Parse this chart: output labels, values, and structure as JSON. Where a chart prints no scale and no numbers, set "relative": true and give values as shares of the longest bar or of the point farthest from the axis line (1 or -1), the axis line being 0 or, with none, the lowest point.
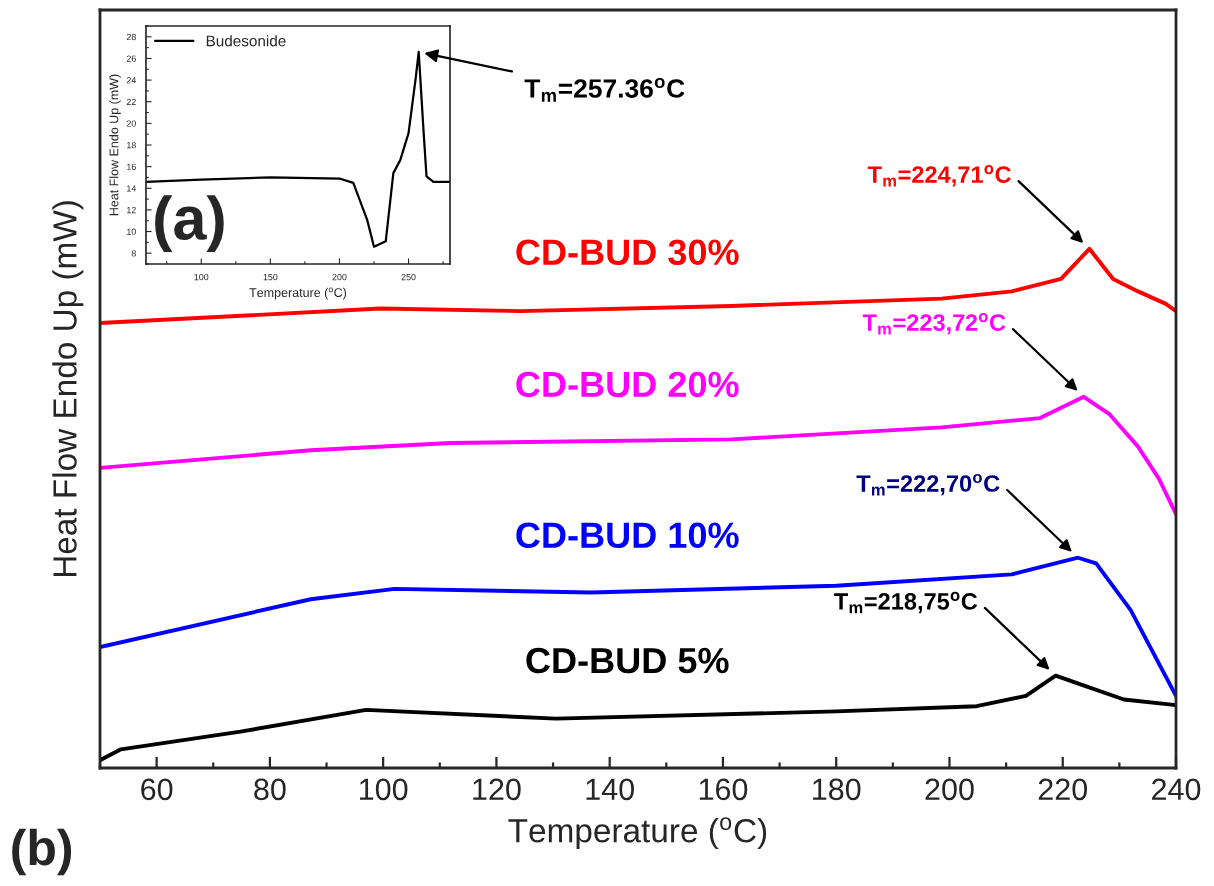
{
  "chart_data": [
    {
      "type": "line",
      "xlabel": "Temperature ($^{o}$C)",
      "ylabel": "Heat Flow Endo Up (mW)",
      "xlim": [
        60,
        280
      ],
      "ylim": [
        7,
        29
      ],
      "xticks": [
        100,
        150,
        200,
        250
      ],
      "yticks": [
        8,
        10,
        12,
        14,
        16,
        18,
        20,
        22,
        24,
        26,
        28
      ],
      "legend": "top left",
      "series": [
        {
          "name": "Budesonide",
          "color": "#000000",
          "x": [
            60,
            100,
            150,
            200,
            210,
            220,
            225,
            233.5,
            239,
            244,
            250,
            255,
            257.36,
            261,
            263,
            268,
            280
          ],
          "values": [
            14.6,
            14.8,
            15.0,
            14.9,
            14.5,
            11.1,
            8.6,
            9.1,
            15.4,
            16.6,
            19.1,
            24.0,
            26.6,
            19.0,
            15.1,
            14.6,
            14.6
          ]
        }
      ],
      "annotations": [
        "(a)",
        {
          "text": "T$_{m}$=257.36$^{o}$C",
          "x": 257.36,
          "y": 26.6
        }
      ]
    },
    {
      "type": "line",
      "relative": true,
      "xlabel": "Temperature ($^{o}$C)",
      "ylabel": "Heat Flow Endo Up (mW)",
      "xlim": [
        50,
        240
      ],
      "xticks": [
        60,
        80,
        100,
        120,
        140,
        160,
        180,
        200,
        220,
        240
      ],
      "tick_labels": "x",
      "series": [
        {
          "name": "CD-BUD 30%",
          "color": "#ff0000",
          "x": [
            50,
            99.5,
            124.3,
            161.5,
            198.6,
            211,
            219.7,
            224.71,
            228.9,
            233.3,
            238.2,
            240
          ],
          "values": [
            0.857,
            0.885,
            0.88,
            0.89,
            0.904,
            0.918,
            0.942,
            1.0,
            0.942,
            0.918,
            0.894,
            0.88
          ]
        },
        {
          "name": "CD-BUD 20%",
          "color": "#ff00ff",
          "x": [
            50,
            87.2,
            111.9,
            161.5,
            198.6,
            216,
            223.72,
            228.3,
            233.3,
            237,
            240
          ],
          "values": [
            0.578,
            0.612,
            0.626,
            0.633,
            0.656,
            0.674,
            0.715,
            0.681,
            0.619,
            0.557,
            0.489
          ]
        },
        {
          "name": "CD-BUD 10%",
          "color": "#0000ff",
          "x": [
            50,
            87.2,
            102,
            136.7,
            180,
            211,
            222.7,
            225.9,
            232,
            240
          ],
          "values": [
            0.233,
            0.325,
            0.345,
            0.338,
            0.351,
            0.373,
            0.405,
            0.394,
            0.304,
            0.139
          ]
        },
        {
          "name": "CD-BUD 5%",
          "color": "#000000",
          "x": [
            50,
            53.7,
            74.8,
            97,
            130.5,
            180,
            204.8,
            213.5,
            218.75,
            223.4,
            230.8,
            240
          ],
          "values": [
            0.015,
            0.036,
            0.07,
            0.112,
            0.095,
            0.109,
            0.119,
            0.139,
            0.178,
            0.16,
            0.132,
            0.121
          ]
        }
      ],
      "annotations": [
        "(b)",
        {
          "text": "T$_{m}$=224,71$^{o}$C",
          "x": 224.71,
          "y": 1.0
        },
        {
          "text": "T$_{m}$=223,72$^{o}$C",
          "x": 223.72,
          "y": 0.715
        },
        {
          "text": "T$_{m}$=222,70$^{o}$C",
          "x": 222.7,
          "y": 0.405
        },
        {
          "text": "T$_{m}$=218,75$^{o}$C",
          "x": 218.75,
          "y": 0.178
        }
      ]
    }
  ]
}
